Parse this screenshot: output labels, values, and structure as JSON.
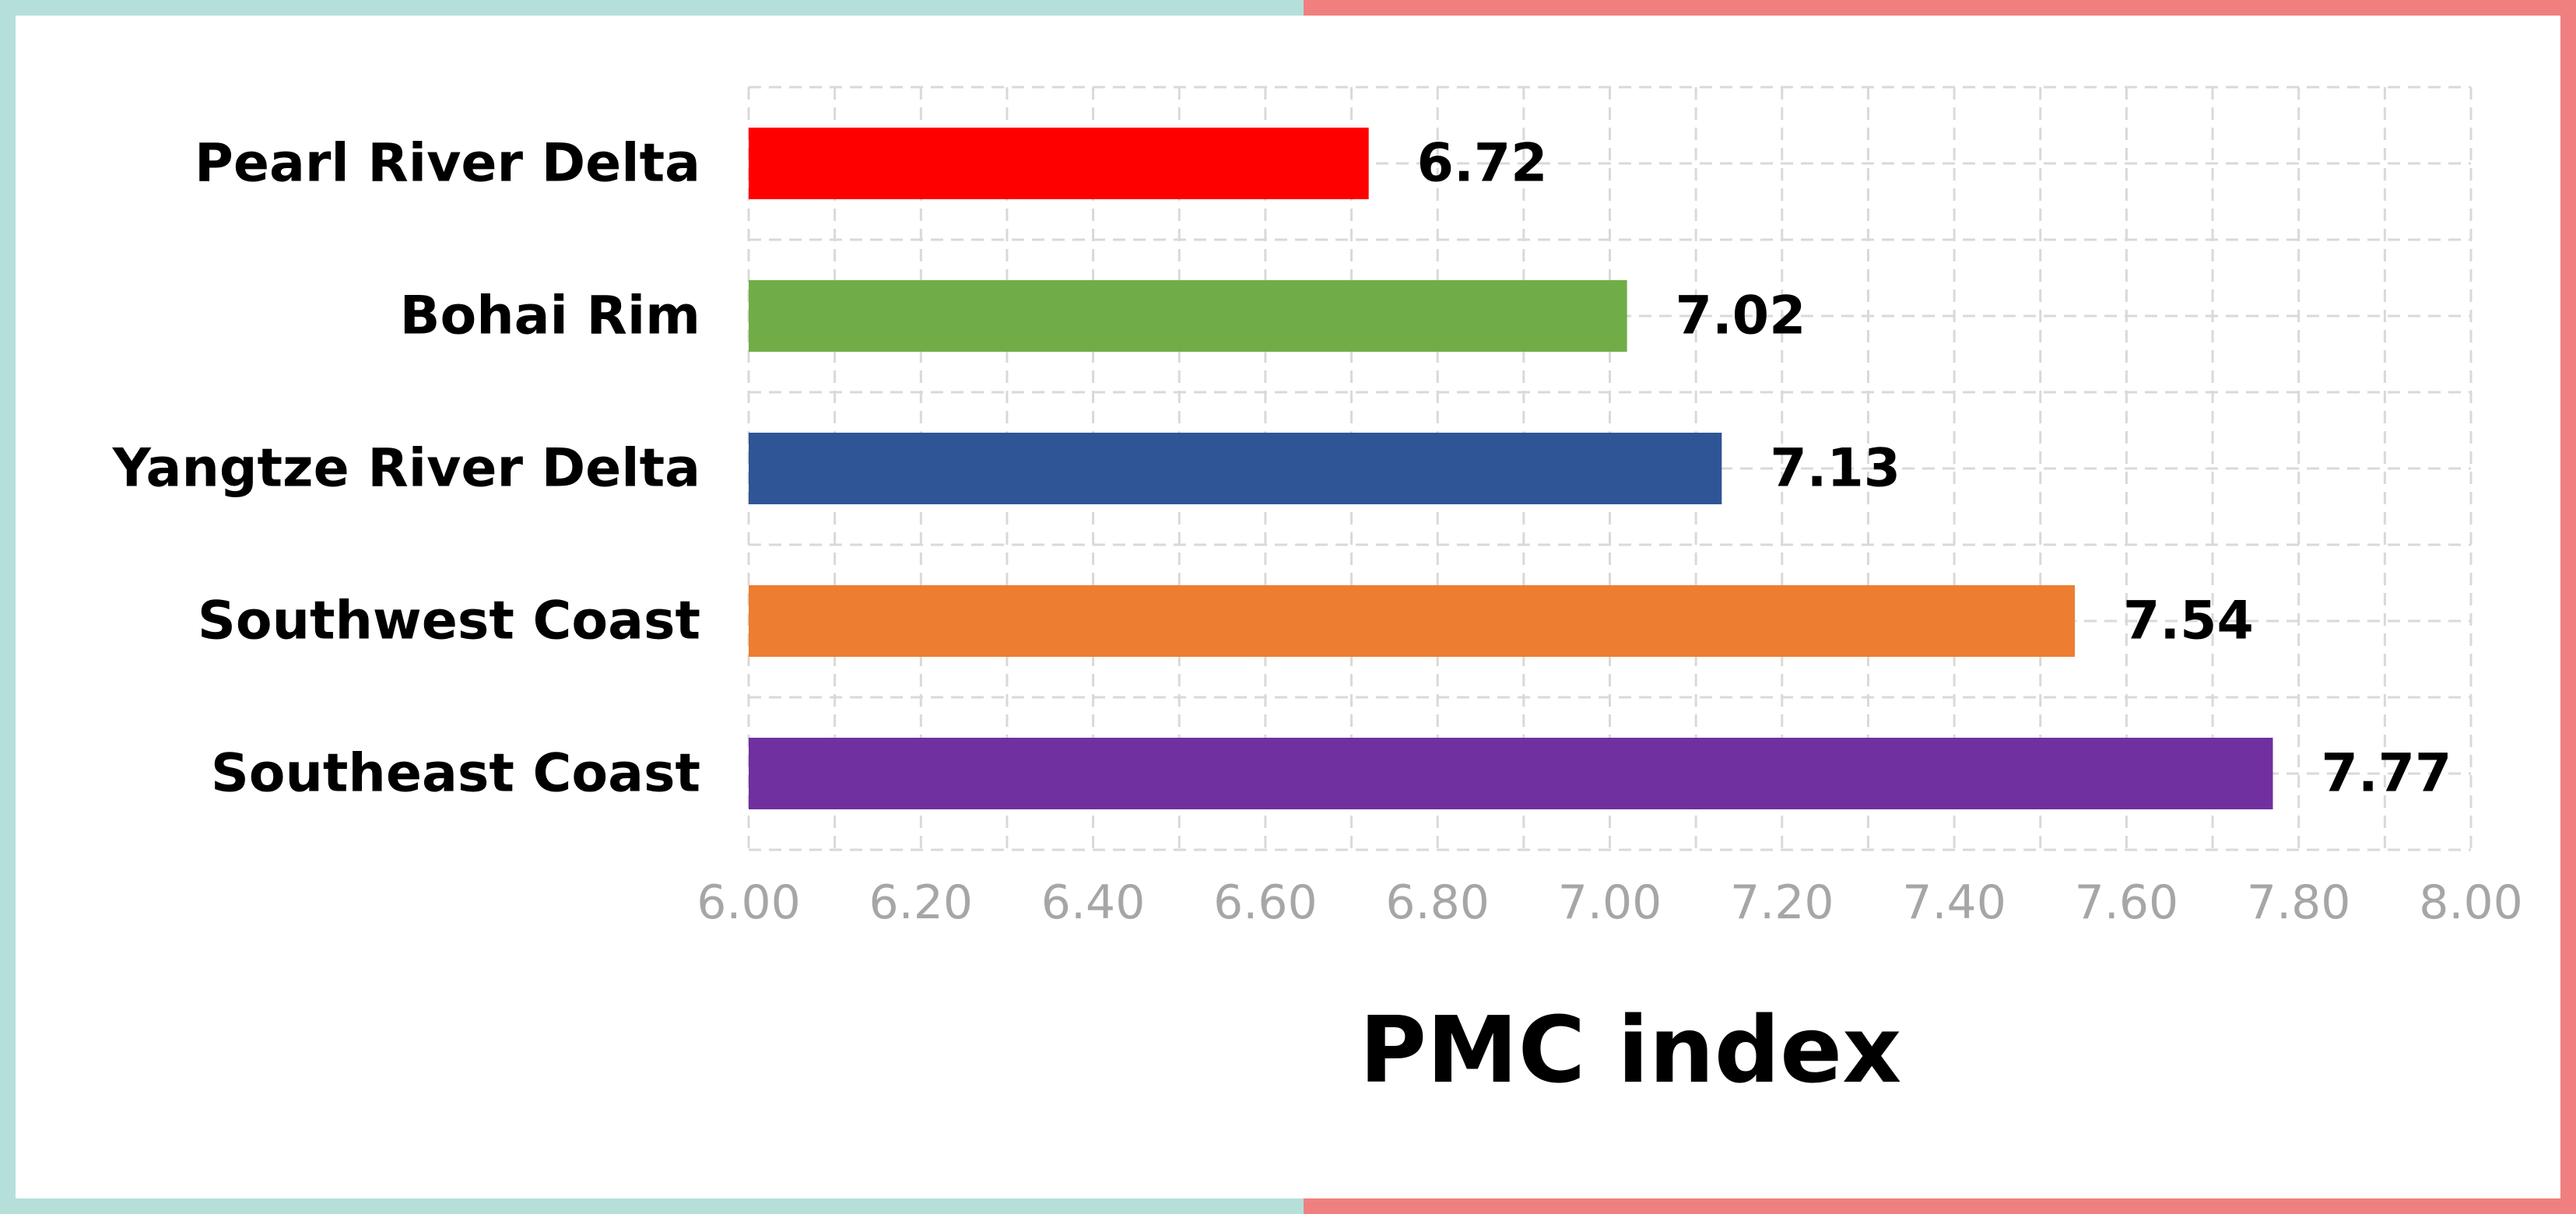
{
  "chart_data": {
    "type": "bar",
    "orientation": "horizontal",
    "categories": [
      "Pearl River Delta",
      "Bohai Rim",
      "Yangtze River Delta",
      "Southwest Coast",
      "Southeast Coast"
    ],
    "values": [
      6.72,
      7.02,
      7.13,
      7.54,
      7.77
    ],
    "value_labels": [
      "6.72",
      "7.02",
      "7.13",
      "7.54",
      "7.77"
    ],
    "bar_colors": [
      "#ff0000",
      "#70ad47",
      "#2f5597",
      "#ed7d31",
      "#7030a0"
    ],
    "xlabel": "PMC index",
    "ylabel": "",
    "title": "",
    "xlim": [
      6.0,
      8.0
    ],
    "xticks": [
      "6.00",
      "6.20",
      "6.40",
      "6.60",
      "6.80",
      "7.00",
      "7.20",
      "7.40",
      "7.60",
      "7.80",
      "8.00"
    ],
    "grid": true,
    "legend": "none"
  },
  "frame": {
    "left_color": "#b5e0da",
    "right_color": "#f08080"
  }
}
